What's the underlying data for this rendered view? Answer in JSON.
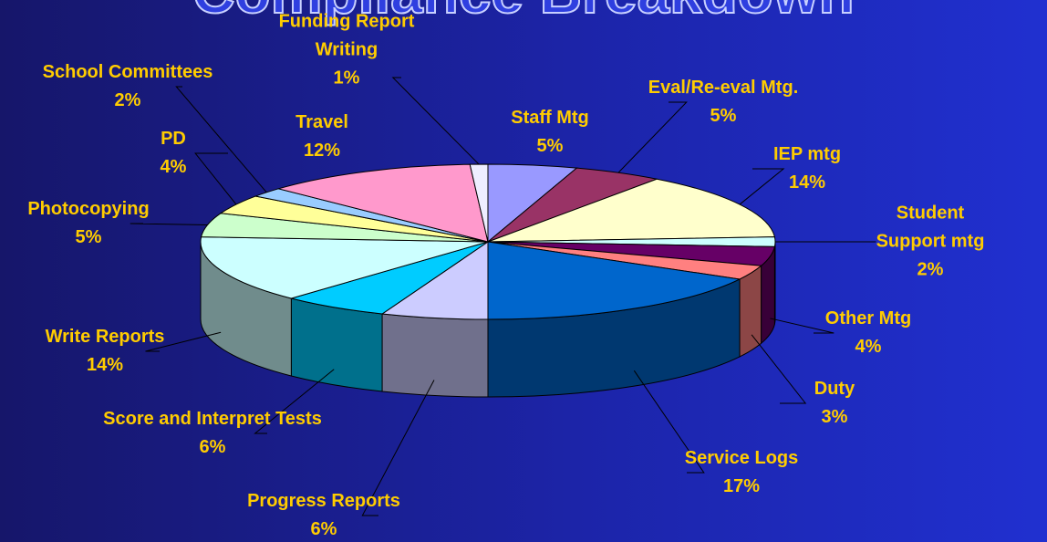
{
  "chart_data": {
    "type": "pie3d",
    "title": "Compliance Breakdown",
    "categories": [
      "Staff Mtg",
      "Eval/Re-eval Mtg.",
      "IEP mtg",
      "Student Support mtg",
      "Other Mtg",
      "Duty",
      "Service Logs",
      "Progress Reports",
      "Score and Interpret Tests",
      "Write Reports",
      "Photocopying",
      "PD",
      "School Committees",
      "Travel",
      "Funding Report Writing"
    ],
    "values": [
      5,
      5,
      14,
      2,
      4,
      3,
      17,
      6,
      6,
      14,
      5,
      4,
      2,
      12,
      1
    ],
    "value_labels": [
      "5%",
      "5%",
      "14%",
      "2%",
      "4%",
      "3%",
      "17%",
      "6%",
      "6%",
      "14%",
      "5%",
      "4%",
      "2%",
      "12%",
      "1%"
    ],
    "colors": [
      "#9999ff",
      "#993366",
      "#ffffcc",
      "#ccffff",
      "#660066",
      "#ff8080",
      "#0066cc",
      "#ccccff",
      "#00ccff",
      "#ccffff",
      "#ccffcc",
      "#ffff99",
      "#99ccff",
      "#ff99cc",
      "#eeeeff"
    ]
  }
}
